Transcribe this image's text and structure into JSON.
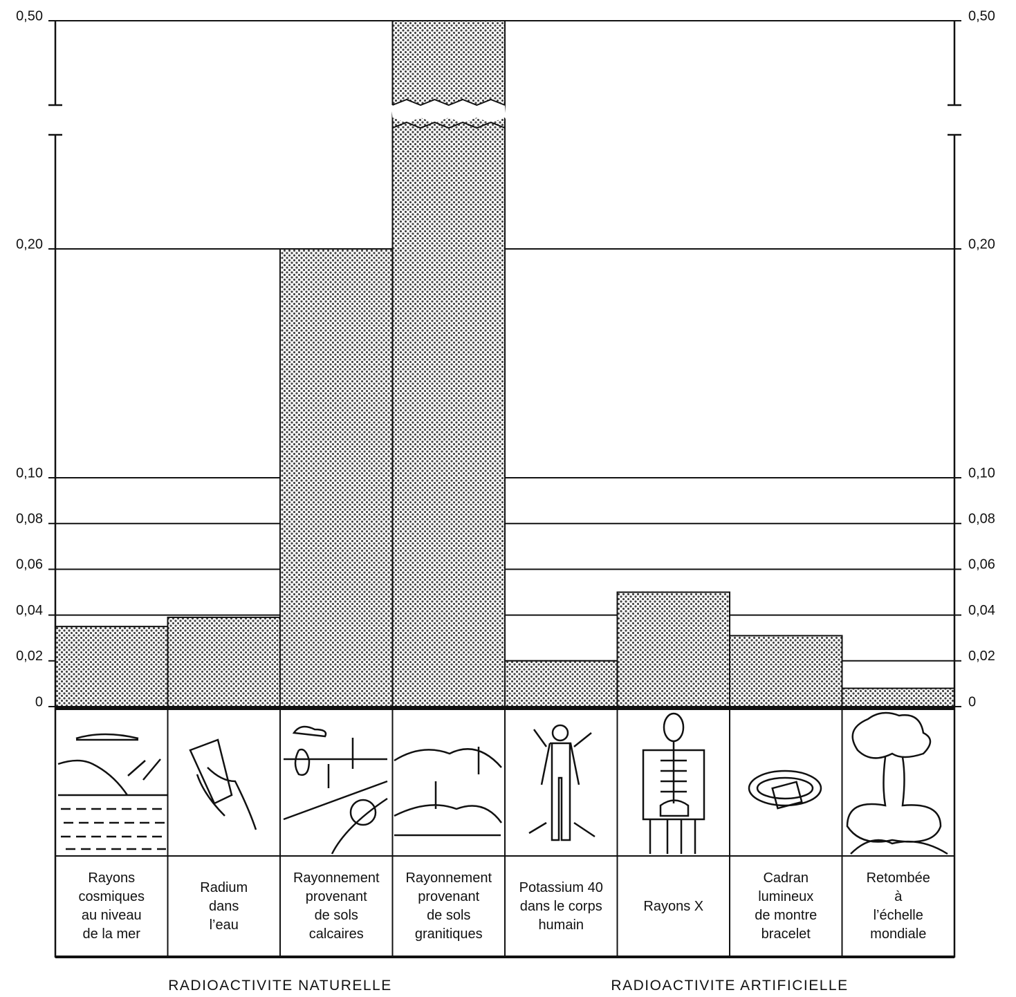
{
  "chart_data": {
    "type": "bar",
    "categories": [
      "Rayons\ncosmiques\nau niveau\nde la mer",
      "Radium\ndans\nl’eau",
      "Rayonnement\nprovenant\nde sols\ncalcaires",
      "Rayonnement\nprovenant\nde sols\ngranitiques",
      "Potassium 40\ndans le corps\nhumain",
      "Rayons X",
      "Cadran\nlumineux\nde montre\nbracelet",
      "Retombée\nà\nl’échelle\nmondiale"
    ],
    "values": [
      0.035,
      0.039,
      0.2,
      0.5,
      0.02,
      0.05,
      0.031,
      0.008
    ],
    "color": "#444444",
    "ylim": [
      0,
      0.5
    ],
    "yticks": [
      0,
      {
        "value": 0.02,
        "label": "0,02"
      },
      {
        "value": 0.04,
        "label": "0,04"
      },
      {
        "value": 0.06,
        "label": "0,06"
      },
      {
        "value": 0.08,
        "label": "0,08"
      },
      {
        "value": 0.1,
        "label": "0,10"
      },
      {
        "value": 0.2,
        "label": "0,20"
      },
      {
        "value": 0.5,
        "label": "0,50"
      }
    ],
    "grid": true,
    "annotations": [
      "RADIOACTIVITE NATURELLE",
      "RADIOACTIVITE ARTIFICIELLE"
    ]
  }
}
